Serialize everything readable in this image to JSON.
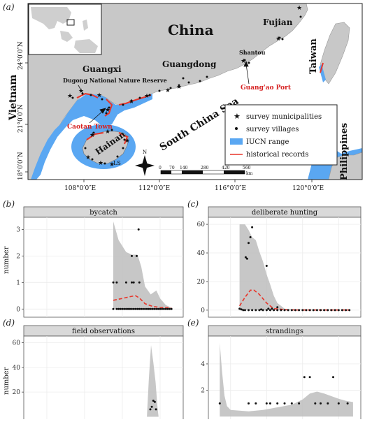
{
  "map": {
    "panel_label": "(a)",
    "country_labels": {
      "china": "China",
      "vietnam": "Vietnam",
      "taiwan": "Taiwan",
      "philippines": "Philippines"
    },
    "province_labels": {
      "fujian": "Fujian",
      "guangdong": "Guangdong",
      "guangxi": "Guangxi",
      "hainan": "Hainan"
    },
    "sea_label": "South China Sea",
    "place_labels": {
      "shantou": "Shantou",
      "ls": "LS"
    },
    "highlight_labels": {
      "guangao_port": "Guang'ao Port",
      "caotan_town": "Caotan Town"
    },
    "reserve_label": "Dugong National Nature Reserve",
    "lat_ticks": [
      "24°0′0″N",
      "21°0′0″N",
      "18°0′0″N"
    ],
    "lon_ticks": [
      "108°0′0″E",
      "112°0′0″E",
      "116°0′0″E",
      "120°0′0″E"
    ],
    "legend": {
      "survey_municipalities": "survey municipalities",
      "survey_villages": "survey villages",
      "iucn_range": "IUCN range",
      "historical_records": "historical records"
    },
    "scale_bar": {
      "ticks": [
        "0",
        "70",
        "140",
        "280",
        "420",
        "560"
      ],
      "unit": "km"
    },
    "north_label": "N",
    "colors": {
      "land": "#c8c8c8",
      "iucn": "#5aa7f2",
      "historical": "#e8352a",
      "label_red": "#d62222"
    }
  },
  "panels": {
    "b": {
      "label": "(b)",
      "title": "bycatch"
    },
    "c": {
      "label": "(c)",
      "title": "deliberate hunting"
    },
    "d": {
      "label": "(d)",
      "title": "ﬁeld observations"
    },
    "e": {
      "label": "(e)",
      "title": "strandings"
    }
  },
  "ylabel": "number",
  "chart_data": [
    {
      "type": "scatter",
      "title": "bycatch",
      "ylim": [
        -0.15,
        3.3
      ],
      "yticks": [
        0,
        1,
        2,
        3
      ],
      "xlim": [
        0,
        40
      ],
      "points": [
        [
          22.6,
          0
        ],
        [
          23.5,
          0
        ],
        [
          24,
          0
        ],
        [
          24.5,
          0
        ],
        [
          25,
          0
        ],
        [
          25.5,
          0
        ],
        [
          26,
          0
        ],
        [
          26.5,
          0
        ],
        [
          27,
          0
        ],
        [
          27.5,
          0
        ],
        [
          28,
          0
        ],
        [
          28.5,
          0
        ],
        [
          29,
          0
        ],
        [
          29.5,
          0
        ],
        [
          30,
          0
        ],
        [
          30.5,
          0
        ],
        [
          31,
          0
        ],
        [
          31.5,
          0
        ],
        [
          32,
          0
        ],
        [
          32.5,
          0
        ],
        [
          33,
          0
        ],
        [
          33.5,
          0
        ],
        [
          34,
          0
        ],
        [
          34.5,
          0
        ],
        [
          35,
          0
        ],
        [
          35.5,
          0
        ],
        [
          36,
          0
        ],
        [
          36.5,
          0
        ],
        [
          37,
          0
        ],
        [
          37.5,
          0
        ],
        [
          38,
          0
        ],
        [
          22.6,
          1
        ],
        [
          23.5,
          1
        ],
        [
          26,
          1
        ],
        [
          27.5,
          1
        ],
        [
          28,
          1
        ],
        [
          29.5,
          1
        ],
        [
          27.5,
          2
        ],
        [
          28.8,
          2
        ],
        [
          29.3,
          3
        ]
      ],
      "trend": [
        [
          22.6,
          0.33
        ],
        [
          25,
          0.4
        ],
        [
          27.5,
          0.48
        ],
        [
          28.5,
          0.5
        ],
        [
          29.5,
          0.42
        ],
        [
          31,
          0.2
        ],
        [
          33,
          0.1
        ],
        [
          35,
          0.06
        ],
        [
          38,
          0.04
        ]
      ],
      "band_upper": [
        [
          22.6,
          3.3
        ],
        [
          24,
          2.6
        ],
        [
          26,
          2.15
        ],
        [
          27.5,
          2.05
        ],
        [
          29,
          2.05
        ],
        [
          30,
          1.6
        ],
        [
          31,
          0.85
        ],
        [
          32.5,
          0.55
        ],
        [
          34,
          0.7
        ],
        [
          35,
          0.4
        ],
        [
          36.5,
          0.15
        ],
        [
          38,
          0.05
        ]
      ],
      "band_lower": [
        [
          38,
          0.0
        ],
        [
          36,
          0.0
        ],
        [
          34,
          0.0
        ],
        [
          32,
          0.0
        ],
        [
          30,
          0.0
        ],
        [
          28,
          0.0
        ],
        [
          26,
          0.0
        ],
        [
          24,
          0.0
        ],
        [
          22.6,
          0.0
        ]
      ]
    },
    {
      "type": "scatter",
      "title": "deliberate hunting",
      "ylim": [
        -2,
        62
      ],
      "yticks": [
        0,
        20,
        40,
        60
      ],
      "xlim": [
        0,
        40
      ],
      "points": [
        [
          7.5,
          1
        ],
        [
          8,
          0.5
        ],
        [
          8.5,
          0
        ],
        [
          9,
          0
        ],
        [
          10,
          0
        ],
        [
          11,
          0
        ],
        [
          12,
          0
        ],
        [
          13,
          0
        ],
        [
          14,
          0
        ],
        [
          15,
          0
        ],
        [
          16,
          0
        ],
        [
          17,
          0
        ],
        [
          18,
          0
        ],
        [
          19,
          0
        ],
        [
          20,
          0
        ],
        [
          21,
          0
        ],
        [
          22,
          0
        ],
        [
          23,
          0
        ],
        [
          24,
          0
        ],
        [
          25,
          0
        ],
        [
          26,
          0
        ],
        [
          27,
          0
        ],
        [
          28,
          0
        ],
        [
          29,
          0
        ],
        [
          30,
          0
        ],
        [
          31,
          0
        ],
        [
          32,
          0
        ],
        [
          33,
          0
        ],
        [
          34,
          0
        ],
        [
          35,
          0
        ],
        [
          36,
          0
        ],
        [
          37,
          0
        ],
        [
          38,
          0
        ],
        [
          9.2,
          37
        ],
        [
          9.6,
          36
        ],
        [
          10,
          47
        ],
        [
          10.5,
          51
        ],
        [
          11,
          58
        ],
        [
          13.5,
          0.5
        ],
        [
          15,
          31
        ],
        [
          15.5,
          1
        ],
        [
          16.5,
          1
        ],
        [
          18,
          2
        ]
      ],
      "trend": [
        [
          7.5,
          3
        ],
        [
          9,
          9
        ],
        [
          10.5,
          14
        ],
        [
          11.5,
          14
        ],
        [
          13,
          11
        ],
        [
          15,
          5
        ],
        [
          16,
          3
        ],
        [
          17,
          1
        ],
        [
          18,
          1
        ],
        [
          20,
          0.3
        ],
        [
          24,
          0.1
        ],
        [
          38,
          0.1
        ]
      ],
      "band_upper": [
        [
          7.5,
          60
        ],
        [
          9,
          60
        ],
        [
          10,
          56
        ],
        [
          11,
          51
        ],
        [
          12,
          49
        ],
        [
          13,
          41
        ],
        [
          14,
          34
        ],
        [
          15,
          25
        ],
        [
          16,
          18
        ],
        [
          17,
          10
        ],
        [
          18,
          5
        ],
        [
          19,
          3
        ],
        [
          20,
          1
        ],
        [
          22,
          0.5
        ],
        [
          38,
          0.2
        ]
      ],
      "band_lower": [
        [
          38,
          0
        ],
        [
          30,
          0
        ],
        [
          20,
          0
        ],
        [
          15,
          0
        ],
        [
          10,
          0
        ],
        [
          7.5,
          0
        ]
      ]
    },
    {
      "type": "scatter",
      "title": "ﬁeld observations",
      "ylim": [
        -2,
        62
      ],
      "yticks": [
        20,
        40,
        60
      ],
      "xlim": [
        0,
        40
      ],
      "points": [
        [
          32.4,
          6
        ],
        [
          32.8,
          8
        ],
        [
          33.2,
          13
        ],
        [
          33.6,
          12
        ],
        [
          33.9,
          6
        ]
      ],
      "band_upper": [
        [
          31.5,
          0
        ],
        [
          32,
          30
        ],
        [
          32.6,
          58
        ],
        [
          33.2,
          44
        ],
        [
          33.8,
          28
        ],
        [
          34.3,
          8
        ],
        [
          34.6,
          0
        ]
      ],
      "band_lower": [
        [
          34.6,
          0
        ],
        [
          31.5,
          0
        ]
      ]
    },
    {
      "type": "scatter",
      "title": "strandings",
      "ylim": [
        -0.2,
        5.8
      ],
      "yticks": [
        2,
        4
      ],
      "xlim": [
        0,
        40
      ],
      "points": [
        [
          2,
          1
        ],
        [
          10,
          1
        ],
        [
          12,
          1
        ],
        [
          15,
          1
        ],
        [
          16,
          1
        ],
        [
          18,
          1
        ],
        [
          20,
          1
        ],
        [
          22,
          1
        ],
        [
          24,
          1
        ],
        [
          25.5,
          3
        ],
        [
          27,
          3
        ],
        [
          28.5,
          1
        ],
        [
          30,
          1
        ],
        [
          32,
          1
        ],
        [
          33.5,
          3
        ],
        [
          35,
          1
        ],
        [
          37.5,
          1
        ]
      ],
      "band_upper": [
        [
          2,
          5.6
        ],
        [
          2.6,
          3.5
        ],
        [
          3.3,
          1.6
        ],
        [
          4,
          0.8
        ],
        [
          5,
          0.5
        ],
        [
          10,
          0.4
        ],
        [
          14,
          0.5
        ],
        [
          18,
          0.7
        ],
        [
          22,
          0.9
        ],
        [
          25,
          1.3
        ],
        [
          27,
          1.75
        ],
        [
          29,
          1.9
        ],
        [
          31,
          1.75
        ],
        [
          33,
          1.55
        ],
        [
          35,
          1.35
        ],
        [
          37,
          1.2
        ],
        [
          39,
          1.1
        ]
      ],
      "band_lower": [
        [
          39,
          0
        ],
        [
          30,
          0
        ],
        [
          20,
          0
        ],
        [
          10,
          0
        ],
        [
          2,
          0
        ]
      ]
    }
  ]
}
